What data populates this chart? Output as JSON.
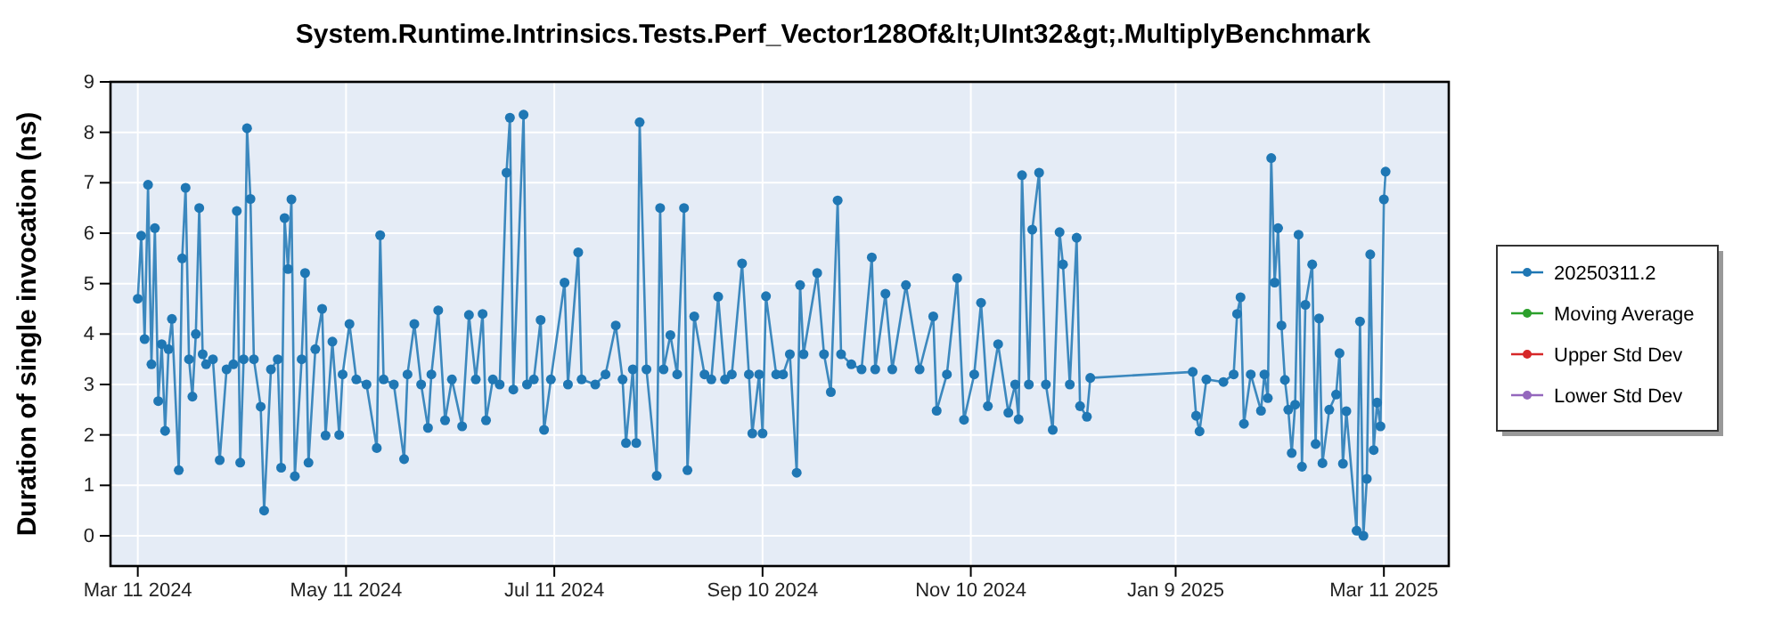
{
  "chart_data": {
    "type": "line",
    "title": "System.Runtime.Intrinsics.Tests.Perf_Vector128Of&lt;UInt32&gt;.MultiplyBenchmark",
    "ylabel": "Duration of single invocation (ns)",
    "xlim": [
      "2024-03-03",
      "2025-03-30"
    ],
    "xticks": [
      {
        "value": "2024-03-11",
        "label": "Mar 11 2024"
      },
      {
        "value": "2024-05-11",
        "label": "May 11 2024"
      },
      {
        "value": "2024-07-11",
        "label": "Jul 11 2024"
      },
      {
        "value": "2024-09-10",
        "label": "Sep 10 2024"
      },
      {
        "value": "2024-11-10",
        "label": "Nov 10 2024"
      },
      {
        "value": "2025-01-09",
        "label": "Jan 9 2025"
      },
      {
        "value": "2025-03-11",
        "label": "Mar 11 2025"
      }
    ],
    "ylim": [
      -0.6,
      9
    ],
    "yticks": [
      0,
      1,
      2,
      3,
      4,
      5,
      6,
      7,
      8,
      9
    ],
    "grid": true,
    "legend": "right",
    "marker": "circle",
    "line_style": "solid",
    "series": [
      {
        "name": "20250311.2",
        "color": "#1f77b4",
        "x": [
          "2024-03-11",
          "2024-03-12",
          "2024-03-13",
          "2024-03-14",
          "2024-03-15",
          "2024-03-16",
          "2024-03-17",
          "2024-03-18",
          "2024-03-19",
          "2024-03-20",
          "2024-03-21",
          "2024-03-23",
          "2024-03-24",
          "2024-03-25",
          "2024-03-26",
          "2024-03-27",
          "2024-03-28",
          "2024-03-29",
          "2024-03-30",
          "2024-03-31",
          "2024-04-02",
          "2024-04-04",
          "2024-04-06",
          "2024-04-08",
          "2024-04-09",
          "2024-04-10",
          "2024-04-11",
          "2024-04-12",
          "2024-04-13",
          "2024-04-14",
          "2024-04-16",
          "2024-04-17",
          "2024-04-19",
          "2024-04-21",
          "2024-04-22",
          "2024-04-23",
          "2024-04-24",
          "2024-04-25",
          "2024-04-26",
          "2024-04-28",
          "2024-04-29",
          "2024-04-30",
          "2024-05-02",
          "2024-05-04",
          "2024-05-05",
          "2024-05-07",
          "2024-05-09",
          "2024-05-10",
          "2024-05-12",
          "2024-05-14",
          "2024-05-17",
          "2024-05-20",
          "2024-05-21",
          "2024-05-22",
          "2024-05-25",
          "2024-05-28",
          "2024-05-29",
          "2024-05-31",
          "2024-06-02",
          "2024-06-04",
          "2024-06-05",
          "2024-06-07",
          "2024-06-09",
          "2024-06-11",
          "2024-06-14",
          "2024-06-16",
          "2024-06-18",
          "2024-06-20",
          "2024-06-21",
          "2024-06-23",
          "2024-06-25",
          "2024-06-27",
          "2024-06-28",
          "2024-06-29",
          "2024-07-02",
          "2024-07-03",
          "2024-07-05",
          "2024-07-07",
          "2024-07-08",
          "2024-07-10",
          "2024-07-14",
          "2024-07-15",
          "2024-07-18",
          "2024-07-19",
          "2024-07-23",
          "2024-07-26",
          "2024-07-29",
          "2024-07-31",
          "2024-08-01",
          "2024-08-03",
          "2024-08-04",
          "2024-08-05",
          "2024-08-07",
          "2024-08-10",
          "2024-08-11",
          "2024-08-12",
          "2024-08-14",
          "2024-08-16",
          "2024-08-18",
          "2024-08-19",
          "2024-08-21",
          "2024-08-24",
          "2024-08-26",
          "2024-08-28",
          "2024-08-30",
          "2024-09-01",
          "2024-09-04",
          "2024-09-06",
          "2024-09-07",
          "2024-09-09",
          "2024-09-10",
          "2024-09-11",
          "2024-09-14",
          "2024-09-16",
          "2024-09-18",
          "2024-09-20",
          "2024-09-21",
          "2024-09-22",
          "2024-09-26",
          "2024-09-28",
          "2024-09-30",
          "2024-10-02",
          "2024-10-03",
          "2024-10-06",
          "2024-10-09",
          "2024-10-12",
          "2024-10-13",
          "2024-10-16",
          "2024-10-18",
          "2024-10-22",
          "2024-10-26",
          "2024-10-30",
          "2024-10-31",
          "2024-11-03",
          "2024-11-06",
          "2024-11-08",
          "2024-11-11",
          "2024-11-13",
          "2024-11-15",
          "2024-11-18",
          "2024-11-21",
          "2024-11-23",
          "2024-11-24",
          "2024-11-25",
          "2024-11-27",
          "2024-11-28",
          "2024-11-30",
          "2024-12-02",
          "2024-12-04",
          "2024-12-06",
          "2024-12-07",
          "2024-12-09",
          "2024-12-11",
          "2024-12-12",
          "2024-12-14",
          "2024-12-15",
          "2025-01-14",
          "2025-01-15",
          "2025-01-16",
          "2025-01-18",
          "2025-01-23",
          "2025-01-26",
          "2025-01-27",
          "2025-01-28",
          "2025-01-29",
          "2025-01-31",
          "2025-02-03",
          "2025-02-04",
          "2025-02-05",
          "2025-02-06",
          "2025-02-07",
          "2025-02-08",
          "2025-02-09",
          "2025-02-10",
          "2025-02-11",
          "2025-02-12",
          "2025-02-13",
          "2025-02-14",
          "2025-02-15",
          "2025-02-16",
          "2025-02-18",
          "2025-02-19",
          "2025-02-20",
          "2025-02-21",
          "2025-02-23",
          "2025-02-25",
          "2025-02-26",
          "2025-02-27",
          "2025-02-28",
          "2025-03-03",
          "2025-03-04",
          "2025-03-05",
          "2025-03-06",
          "2025-03-07",
          "2025-03-08",
          "2025-03-09",
          "2025-03-10",
          "2025-03-11",
          "2025-03-11T12:00"
        ],
        "values": [
          4.7,
          5.95,
          3.9,
          6.96,
          3.4,
          6.1,
          2.67,
          3.8,
          2.08,
          3.7,
          4.3,
          1.3,
          5.5,
          6.9,
          3.5,
          2.76,
          4.0,
          6.5,
          3.6,
          3.4,
          3.5,
          1.5,
          3.3,
          3.4,
          6.44,
          1.45,
          3.5,
          8.08,
          6.68,
          3.5,
          2.56,
          0.5,
          3.3,
          3.5,
          1.35,
          6.3,
          5.29,
          6.67,
          1.18,
          3.5,
          5.21,
          1.45,
          3.7,
          4.5,
          1.99,
          3.85,
          2.0,
          3.2,
          4.2,
          3.1,
          3.0,
          1.74,
          5.96,
          3.1,
          3.0,
          1.52,
          3.2,
          4.2,
          3.0,
          2.14,
          3.2,
          4.47,
          2.29,
          3.1,
          2.17,
          4.38,
          3.1,
          4.4,
          2.29,
          3.1,
          3.0,
          7.2,
          8.29,
          2.9,
          8.35,
          3.0,
          3.1,
          4.28,
          2.1,
          3.1,
          5.02,
          3.0,
          5.62,
          3.1,
          3.0,
          3.2,
          4.17,
          3.1,
          1.84,
          3.3,
          1.84,
          8.2,
          3.3,
          1.19,
          6.5,
          3.3,
          3.98,
          3.2,
          6.5,
          1.3,
          4.35,
          3.2,
          3.1,
          4.74,
          3.1,
          3.2,
          5.4,
          3.2,
          2.03,
          3.2,
          2.03,
          4.75,
          3.2,
          3.2,
          3.6,
          1.25,
          4.97,
          3.6,
          5.21,
          3.6,
          2.85,
          6.65,
          3.6,
          3.4,
          3.3,
          5.52,
          3.3,
          4.8,
          3.3,
          4.97,
          3.3,
          4.35,
          2.48,
          3.2,
          5.11,
          2.3,
          3.2,
          4.62,
          2.57,
          3.8,
          2.44,
          3.0,
          2.31,
          7.15,
          3.0,
          6.07,
          7.2,
          3.0,
          2.1,
          6.02,
          5.38,
          3.0,
          5.91,
          2.57,
          2.36,
          3.13,
          3.25,
          2.38,
          2.07,
          3.1,
          3.05,
          3.2,
          4.4,
          4.73,
          2.22,
          3.2,
          2.48,
          3.2,
          2.73,
          7.49,
          5.02,
          6.1,
          4.17,
          3.09,
          2.5,
          1.64,
          2.6,
          5.97,
          1.37,
          4.58,
          5.38,
          1.82,
          4.31,
          1.44,
          2.5,
          2.8,
          3.62,
          1.43,
          2.47,
          0.1,
          4.25,
          0.0,
          1.13,
          5.58,
          1.7,
          2.64,
          2.17,
          6.67,
          7.22
        ]
      },
      {
        "name": "Moving Average",
        "color": "#2ca02c"
      },
      {
        "name": "Upper Std Dev",
        "color": "#d62728"
      },
      {
        "name": "Lower Std Dev",
        "color": "#9467bd"
      }
    ]
  }
}
